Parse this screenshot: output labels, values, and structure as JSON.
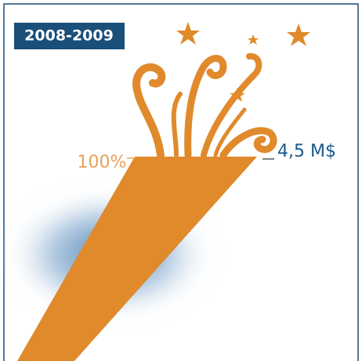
{
  "badge": "2008-2009",
  "left_label": "100%",
  "right_label": "4,5 M$"
}
